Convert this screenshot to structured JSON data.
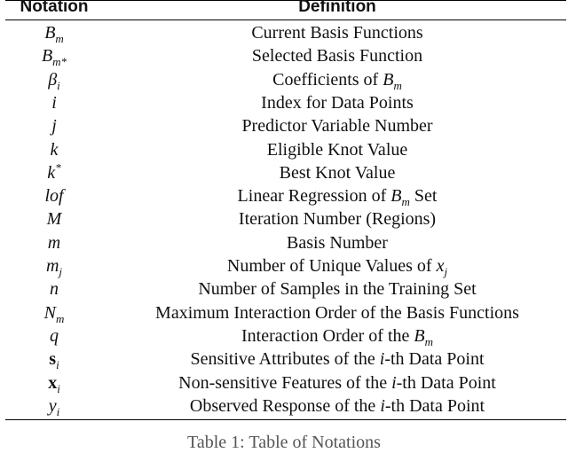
{
  "header": {
    "notation": "Notation",
    "definition": "Definition"
  },
  "rows": [
    {
      "notation": {
        "base": "B",
        "sub": "m"
      },
      "definition": [
        {
          "t": "Current Basis Functions"
        }
      ]
    },
    {
      "notation": {
        "base": "B",
        "sub": "m*"
      },
      "definition": [
        {
          "t": "Selected Basis Function"
        }
      ]
    },
    {
      "notation": {
        "base": "β",
        "sub": "i"
      },
      "definition": [
        {
          "t": "Coefficients of "
        },
        {
          "m": "B",
          "sub": "m"
        }
      ]
    },
    {
      "notation": {
        "base": "i"
      },
      "definition": [
        {
          "t": "Index for Data Points"
        }
      ]
    },
    {
      "notation": {
        "base": "j"
      },
      "definition": [
        {
          "t": "Predictor Variable Number"
        }
      ]
    },
    {
      "notation": {
        "base": "k"
      },
      "definition": [
        {
          "t": "Eligible Knot Value"
        }
      ]
    },
    {
      "notation": {
        "base": "k",
        "sup": "*"
      },
      "definition": [
        {
          "t": "Best Knot Value"
        }
      ]
    },
    {
      "notation": {
        "base": "lof"
      },
      "definition": [
        {
          "t": "Linear Regression of "
        },
        {
          "m": "B",
          "sub": "m"
        },
        {
          "t": " Set"
        }
      ]
    },
    {
      "notation": {
        "base": "M"
      },
      "definition": [
        {
          "t": "Iteration Number (Regions)"
        }
      ]
    },
    {
      "notation": {
        "base": "m"
      },
      "definition": [
        {
          "t": "Basis Number"
        }
      ]
    },
    {
      "notation": {
        "base": "m",
        "sub": "j"
      },
      "definition": [
        {
          "t": "Number of Unique Values of "
        },
        {
          "m": "x",
          "sub": "j"
        }
      ]
    },
    {
      "notation": {
        "base": "n"
      },
      "definition": [
        {
          "t": "Number of Samples in the Training Set"
        }
      ]
    },
    {
      "notation": {
        "base": "N",
        "sub": "m"
      },
      "definition": [
        {
          "t": "Maximum Interaction Order of the Basis Functions"
        }
      ]
    },
    {
      "notation": {
        "base": "q"
      },
      "definition": [
        {
          "t": "Interaction Order of the "
        },
        {
          "m": "B",
          "sub": "m"
        }
      ]
    },
    {
      "notation": {
        "base": "s",
        "sub": "i",
        "bold": true
      },
      "definition": [
        {
          "t": "Sensitive Attributes of the "
        },
        {
          "m": "i"
        },
        {
          "t": "-th Data Point"
        }
      ]
    },
    {
      "notation": {
        "base": "x",
        "sub": "i",
        "bold": true
      },
      "definition": [
        {
          "t": "Non-sensitive Features of the "
        },
        {
          "m": "i"
        },
        {
          "t": "-th Data Point"
        }
      ]
    },
    {
      "notation": {
        "base": "y",
        "sub": "i"
      },
      "definition": [
        {
          "t": "Observed Response of the "
        },
        {
          "m": "i"
        },
        {
          "t": "-th Data Point"
        }
      ]
    }
  ],
  "caption": "Table 1: Table of Notations"
}
